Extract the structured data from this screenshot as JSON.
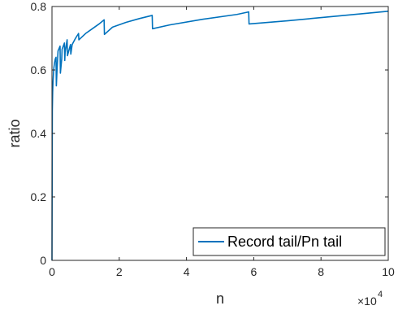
{
  "chart_data": {
    "type": "line",
    "title": "",
    "xlabel": "n",
    "ylabel": "ratio",
    "xlim": [
      0,
      100000
    ],
    "ylim": [
      0,
      0.8
    ],
    "x_tick_values": [
      0,
      20000,
      40000,
      60000,
      80000,
      100000
    ],
    "x_tick_labels": [
      "0",
      "2",
      "4",
      "6",
      "8",
      "10"
    ],
    "x_exponent_base": "×10",
    "x_exponent": "4",
    "y_tick_values": [
      0,
      0.2,
      0.4,
      0.6,
      0.8
    ],
    "y_tick_labels": [
      "0",
      "0.2",
      "0.4",
      "0.6",
      "0.8"
    ],
    "grid": false,
    "legend_position": "bottom-right",
    "colors": {
      "series": "#0072BD",
      "axis": "#262626"
    },
    "series": [
      {
        "name": "Record tail/Pn tail",
        "x": [
          1,
          100,
          200,
          300,
          400,
          500,
          600,
          800,
          1000,
          1200,
          1300,
          1500,
          1800,
          2000,
          2400,
          2500,
          2900,
          3000,
          3700,
          3800,
          3900,
          4500,
          4600,
          5500,
          5600,
          6000,
          7000,
          7900,
          8000,
          10000,
          12000,
          14000,
          15500,
          15600,
          18000,
          22000,
          26000,
          29800,
          29900,
          35000,
          45000,
          55000,
          58500,
          58600,
          70000,
          85000,
          100000
        ],
        "y": [
          0.0,
          0.47,
          0.53,
          0.56,
          0.58,
          0.6,
          0.61,
          0.625,
          0.635,
          0.64,
          0.55,
          0.6,
          0.66,
          0.665,
          0.675,
          0.59,
          0.635,
          0.665,
          0.685,
          0.63,
          0.655,
          0.695,
          0.645,
          0.68,
          0.65,
          0.68,
          0.7,
          0.715,
          0.695,
          0.715,
          0.73,
          0.745,
          0.758,
          0.712,
          0.735,
          0.75,
          0.762,
          0.772,
          0.73,
          0.742,
          0.76,
          0.775,
          0.783,
          0.745,
          0.755,
          0.77,
          0.785
        ]
      }
    ]
  }
}
